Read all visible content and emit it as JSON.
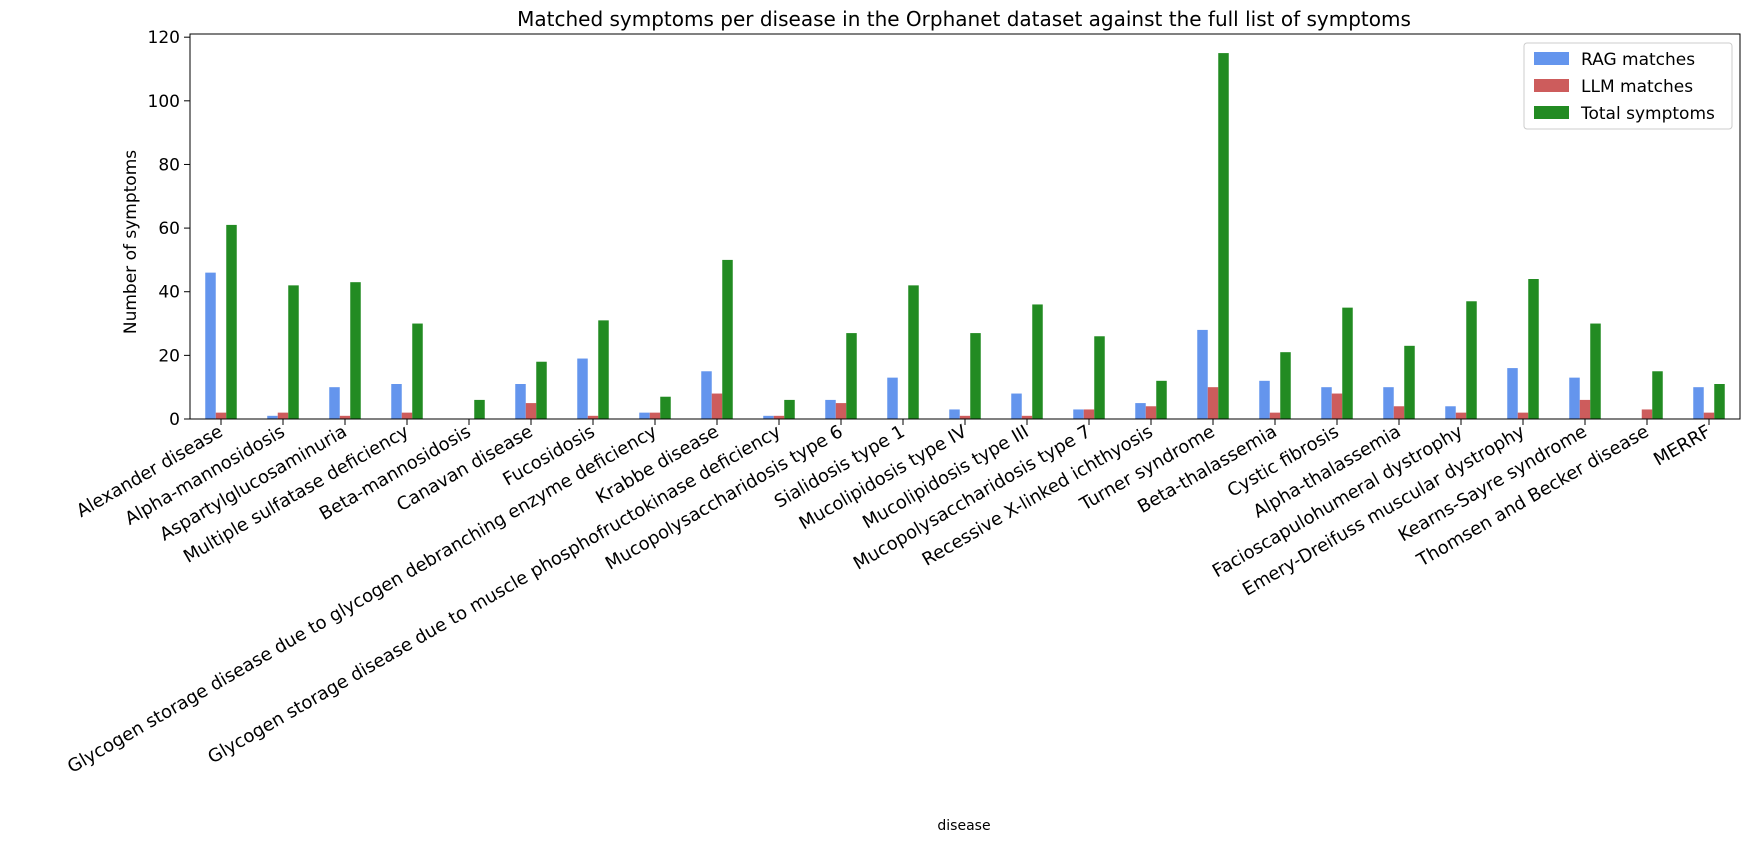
{
  "chart_data": {
    "type": "bar",
    "title": "Matched symptoms per disease in the Orphanet dataset against the full list of symptoms",
    "xlabel": "disease",
    "ylabel": "Number of symptoms",
    "ylim": [
      0,
      121
    ],
    "yticks": [
      0,
      20,
      40,
      60,
      80,
      100,
      120
    ],
    "grid": false,
    "legend_position": "top-right",
    "categories": [
      "Alexander disease",
      "Alpha-mannosidosis",
      "Aspartylglucosaminuria",
      "Multiple sulfatase deficiency",
      "Beta-mannosidosis",
      "Canavan disease",
      "Fucosidosis",
      "Glycogen storage disease due to glycogen debranching enzyme deficiency",
      "Krabbe disease",
      "Glycogen storage disease due to muscle phosphofructokinase deficiency",
      "Mucopolysaccharidosis type 6",
      "Sialidosis type 1",
      "Mucolipidosis type IV",
      "Mucolipidosis type III",
      "Mucopolysaccharidosis type 7",
      "Recessive X-linked ichthyosis",
      "Turner syndrome",
      "Beta-thalassemia",
      "Cystic fibrosis",
      "Alpha-thalassemia",
      "Facioscapulohumeral dystrophy",
      "Emery-Dreifuss muscular dystrophy",
      "Kearns-Sayre syndrome",
      "Thomsen and Becker disease",
      "MERRF"
    ],
    "series": [
      {
        "name": "RAG matches",
        "color": "#6495ED",
        "values": [
          46,
          1,
          10,
          11,
          0,
          11,
          19,
          2,
          15,
          1,
          6,
          13,
          3,
          8,
          3,
          5,
          28,
          12,
          10,
          10,
          4,
          16,
          13,
          0,
          10
        ]
      },
      {
        "name": "LLM matches",
        "color": "#CD5C5C",
        "values": [
          2,
          2,
          1,
          2,
          0,
          5,
          1,
          2,
          8,
          1,
          5,
          0,
          1,
          1,
          3,
          4,
          10,
          2,
          8,
          4,
          2,
          2,
          6,
          3,
          2
        ]
      },
      {
        "name": "Total symptoms",
        "color": "#228B22",
        "values": [
          61,
          42,
          43,
          30,
          6,
          18,
          31,
          7,
          50,
          6,
          27,
          42,
          27,
          36,
          26,
          12,
          115,
          21,
          35,
          23,
          37,
          44,
          30,
          15,
          11
        ]
      }
    ]
  }
}
